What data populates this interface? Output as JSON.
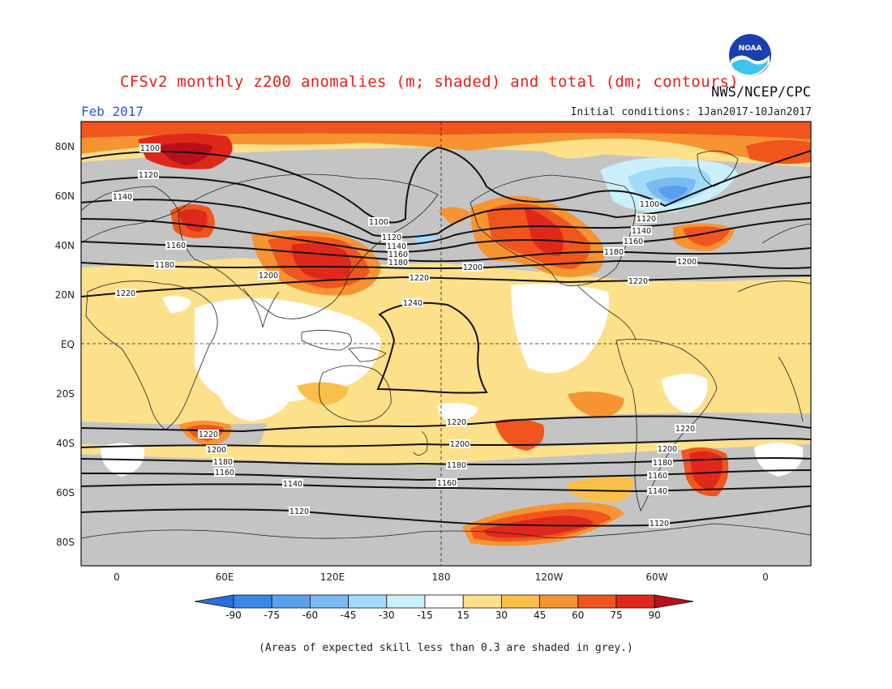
{
  "title": "CFSv2 monthly z200 anomalies (m; shaded) and total (dm; contours)",
  "organization": "NWS/NCEP/CPC",
  "logo_text": "NOAA",
  "forecast_month": "Feb 2017",
  "initial_conditions": "Initial conditions: 1Jan2017-10Jan2017",
  "lat_labels": [
    "80N",
    "60N",
    "40N",
    "20N",
    "EQ",
    "20S",
    "40S",
    "60S",
    "80S"
  ],
  "lon_labels": [
    "0",
    "60E",
    "120E",
    "180",
    "120W",
    "60W",
    "0"
  ],
  "contour_labels": [
    "1100",
    "1120",
    "1140",
    "1160",
    "1180",
    "1200",
    "1220",
    "1240"
  ],
  "colorbar": {
    "ticks": [
      "-90",
      "-75",
      "-60",
      "-45",
      "-30",
      "-15",
      "15",
      "30",
      "45",
      "60",
      "75",
      "90"
    ],
    "colors": [
      "#2a6ed8",
      "#3b87e6",
      "#5aa0ee",
      "#7bbaf2",
      "#a3daf8",
      "#c9f0fb",
      "#ffffff",
      "#fde08a",
      "#f9bf4a",
      "#f79432",
      "#f0551e",
      "#e0281a",
      "#b8101a"
    ]
  },
  "footnote": "(Areas of expected skill less than 0.3 are shaded in grey.)"
}
